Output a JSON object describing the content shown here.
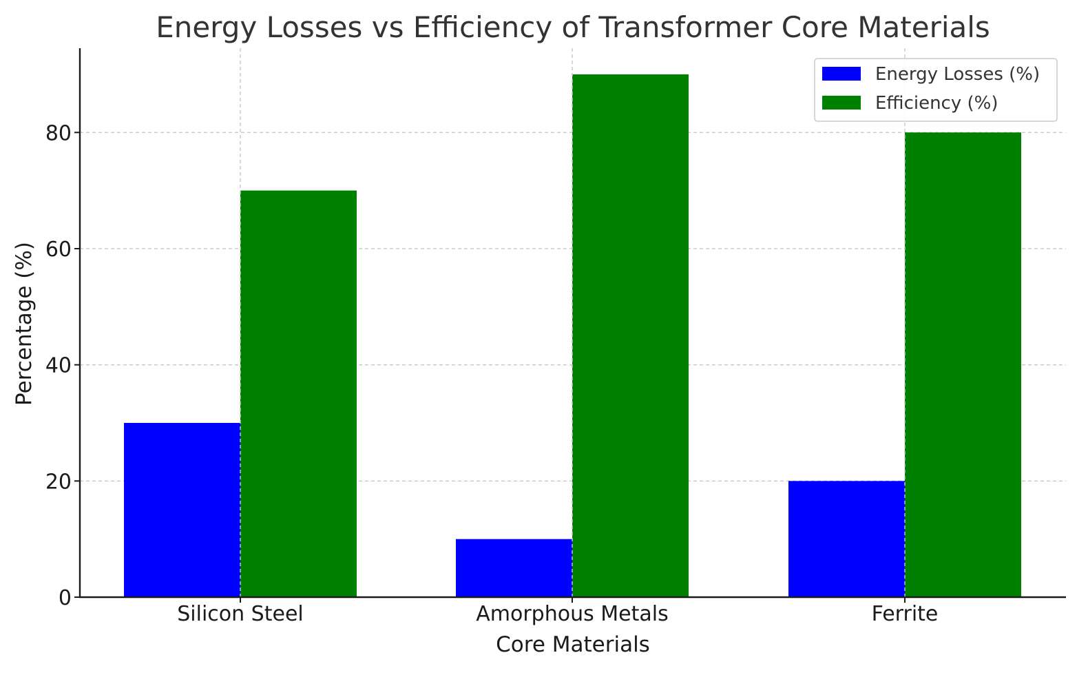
{
  "chart_data": {
    "type": "bar",
    "title": "Energy Losses vs Efficiency of Transformer Core Materials",
    "xlabel": "Core Materials",
    "ylabel": "Percentage (%)",
    "categories": [
      "Silicon Steel",
      "Amorphous Metals",
      "Ferrite"
    ],
    "series": [
      {
        "name": "Energy Losses (%)",
        "color": "#0000ff",
        "values": [
          30,
          10,
          20
        ]
      },
      {
        "name": "Efficiency (%)",
        "color": "#008000",
        "values": [
          70,
          90,
          80
        ]
      }
    ],
    "ylim": [
      0,
      94.5
    ],
    "yticks": [
      0,
      20,
      40,
      60,
      80
    ],
    "grid": true,
    "legend_position": "top-right"
  }
}
